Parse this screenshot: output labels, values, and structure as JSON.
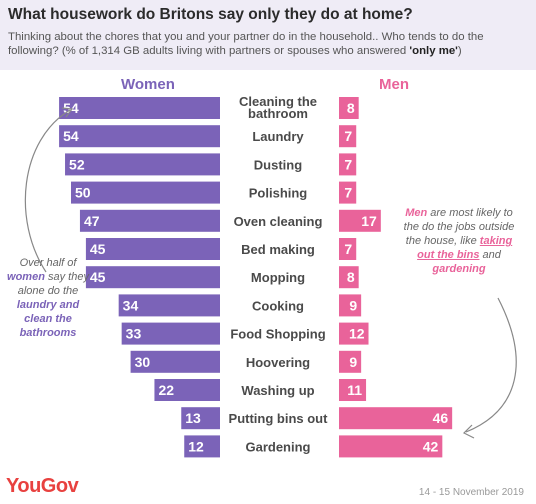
{
  "header": {
    "title": "What housework do Britons say only they do at home?",
    "subtitle_main": "Thinking about the chores that you and your partner do in the household.. Who tends to do the following? (% of 1,314 GB adults living with partners or spouses who answered ",
    "subtitle_bold": "'only me'",
    "subtitle_end": ")"
  },
  "colors": {
    "women": "#7b63b8",
    "men": "#e9639a",
    "background": "#ffffff",
    "header_bg": "#efecf6"
  },
  "chart_data": {
    "type": "bar",
    "layout": "butterfly",
    "categories": [
      "Cleaning the bathroom",
      "Laundry",
      "Dusting",
      "Polishing",
      "Oven cleaning",
      "Bed making",
      "Mopping",
      "Cooking",
      "Food Shopping",
      "Hoovering",
      "Washing up",
      "Putting bins out",
      "Gardening"
    ],
    "series": [
      {
        "name": "Women",
        "values": [
          54,
          54,
          52,
          50,
          47,
          45,
          45,
          34,
          33,
          30,
          22,
          13,
          12
        ]
      },
      {
        "name": "Men",
        "values": [
          8,
          7,
          7,
          7,
          17,
          7,
          8,
          9,
          12,
          9,
          11,
          46,
          42
        ]
      }
    ],
    "xlim": [
      0,
      54
    ]
  },
  "notes": {
    "left": {
      "p1": "Over half of ",
      "em1": "women",
      "p2": " say they alone do the ",
      "em2": "laundry and clean the bathrooms"
    },
    "right": {
      "em1": "Men",
      "p1": " are most likely to the do the jobs outside the house, like ",
      "em2": "taking out the bins",
      "p2": " and ",
      "em3": "gardening"
    }
  },
  "footer": {
    "logo": "YouGov",
    "date": "14 - 15 November 2019"
  }
}
